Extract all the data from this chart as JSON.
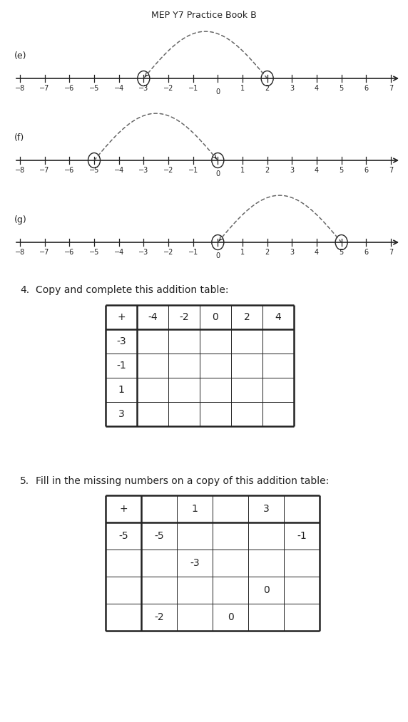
{
  "title": "MEP Y7 Practice Book B",
  "title_fontsize": 9,
  "number_lines": [
    {
      "label": "(e)",
      "x_min": -8,
      "x_max": 7,
      "circle1": -3,
      "circle2": 2,
      "arc_from": 2,
      "arc_to": -3,
      "arrow_at_to": true
    },
    {
      "label": "(f)",
      "x_min": -8,
      "x_max": 7,
      "circle1": -5,
      "circle2": 0,
      "arc_from": -5,
      "arc_to": 0,
      "arrow_at_to": true
    },
    {
      "label": "(g)",
      "x_min": -8,
      "x_max": 7,
      "circle1": 0,
      "circle2": 5,
      "arc_from": 5,
      "arc_to": 0,
      "arrow_at_to": true
    }
  ],
  "q4_label": "4.",
  "q4_text": "Copy and complete this addition table:",
  "q4_header_cols": [
    "+",
    "-4",
    "-2",
    "0",
    "2",
    "4"
  ],
  "q4_row_labels": [
    "-3",
    "-1",
    "1",
    "3"
  ],
  "q5_label": "5.",
  "q5_text": "Fill in the missing numbers on a copy of this addition table:",
  "q5_grid": [
    [
      "+",
      "",
      "1",
      "",
      "3",
      ""
    ],
    [
      "-5",
      "-5",
      "",
      "",
      "",
      "-1"
    ],
    [
      "",
      "",
      "-3",
      "",
      "",
      ""
    ],
    [
      "",
      "",
      "",
      "",
      "0",
      ""
    ],
    [
      "",
      "-2",
      "",
      "0",
      "",
      ""
    ]
  ],
  "font_color": "#222222",
  "bg_color": "#ffffff",
  "line_color": "#222222",
  "arc_color": "#666666"
}
